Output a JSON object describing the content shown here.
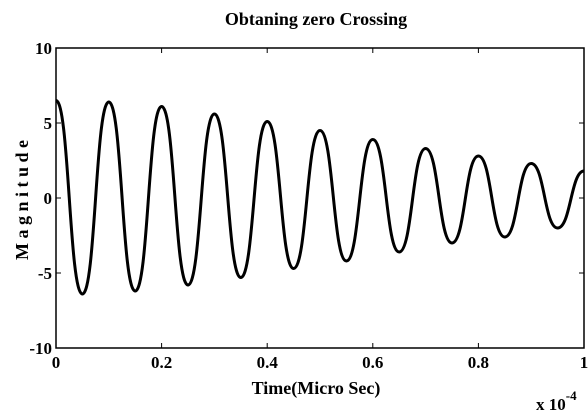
{
  "chart_data": {
    "type": "line",
    "title": "Obtaning zero Crossing",
    "xlabel": "Time(Micro Sec)",
    "ylabel": "M a g n i t u d e",
    "xlim": [
      0,
      1
    ],
    "ylim": [
      -10,
      10
    ],
    "x_ticks": [
      "0",
      "0.2",
      "0.4",
      "0.6",
      "0.8",
      "1"
    ],
    "y_ticks": [
      "10",
      "5",
      "0",
      "-5",
      "-10"
    ],
    "x_tick_values": [
      0,
      0.2,
      0.4,
      0.6,
      0.8,
      1
    ],
    "y_tick_values": [
      10,
      5,
      0,
      -5,
      -10
    ],
    "x_multiplier": {
      "base": "x 10",
      "exponent": "-4"
    },
    "grid": false,
    "series": [
      {
        "color": "#000000",
        "x": [
          0,
          0.05,
          0.1,
          0.15,
          0.2,
          0.25,
          0.3,
          0.35,
          0.4,
          0.45,
          0.5,
          0.55,
          0.6,
          0.65,
          0.7,
          0.75,
          0.8,
          0.85,
          0.9,
          0.95,
          1.0
        ],
        "y": [
          6.5,
          -6.4,
          6.4,
          -6.2,
          6.1,
          -5.8,
          5.6,
          -5.3,
          5.1,
          -4.7,
          4.5,
          -4.2,
          3.9,
          -3.6,
          3.3,
          -3.0,
          2.8,
          -2.6,
          2.3,
          -2.0,
          1.8
        ]
      }
    ]
  }
}
